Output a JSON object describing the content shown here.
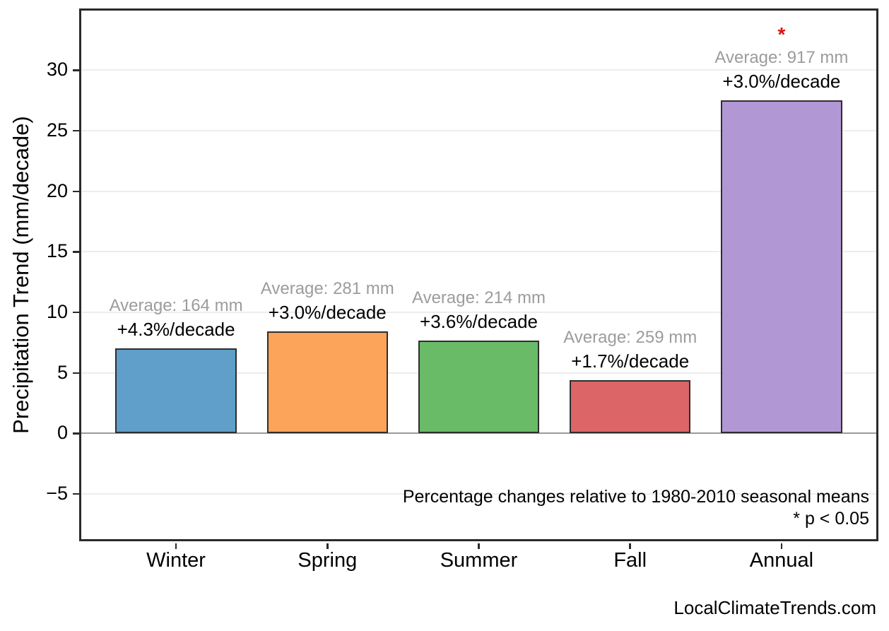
{
  "chart_data": {
    "type": "bar",
    "title": "",
    "xlabel": "",
    "ylabel": "Precipitation Trend (mm/decade)",
    "categories": [
      "Winter",
      "Spring",
      "Summer",
      "Fall",
      "Annual"
    ],
    "values": [
      7.05,
      8.43,
      7.7,
      4.4,
      27.51
    ],
    "bar_colors": [
      "#5f9fc9",
      "#fca45a",
      "#69bb68",
      "#dc6667",
      "#b297d5"
    ],
    "annotations": [
      {
        "average_label": "Average: 164 mm",
        "trend_label": "+4.3%/decade",
        "significant": false
      },
      {
        "average_label": "Average: 281 mm",
        "trend_label": "+3.0%/decade",
        "significant": false
      },
      {
        "average_label": "Average: 214 mm",
        "trend_label": "+3.6%/decade",
        "significant": false
      },
      {
        "average_label": "Average: 259 mm",
        "trend_label": "+1.7%/decade",
        "significant": false
      },
      {
        "average_label": "Average: 917 mm",
        "trend_label": "+3.0%/decade",
        "significant": true
      }
    ],
    "significance_marker": "*",
    "yticks": [
      30,
      25,
      20,
      15,
      10,
      5,
      0,
      -5
    ],
    "ylim": [
      -8.9,
      35.1
    ],
    "xlim": [
      -0.64,
      4.64
    ],
    "bar_width": 0.8,
    "grid": "horizontal light-gray lines, darker gray zero line",
    "legend": "none",
    "footnote_line1": "Percentage changes relative to 1980-2010 seasonal means",
    "footnote_line2": "* p < 0.05"
  },
  "attribution": "LocalClimateTrends.com",
  "colors": {
    "grid": "#ededed",
    "zero_line": "#9a9a9a",
    "spine": "#2a2a2a",
    "bar_edge": "#2e2e2e",
    "average_text": "#9c9c9c",
    "significance": "#e01212"
  }
}
